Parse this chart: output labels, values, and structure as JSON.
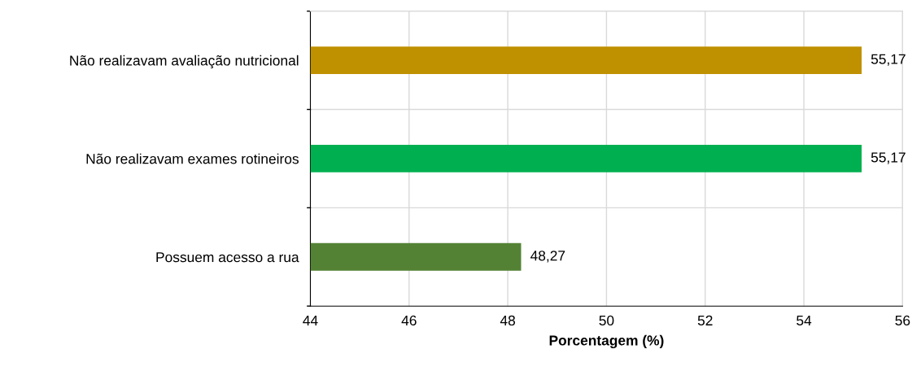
{
  "chart_data": {
    "type": "bar",
    "orientation": "horizontal",
    "xlabel": "Porcentagem (%)",
    "categories": [
      "Não realizavam avaliação nutricional",
      "Não realizavam exames rotineiros",
      "Possuem acesso a rua"
    ],
    "values": [
      55.17,
      55.17,
      48.27
    ],
    "colors": [
      "#bf9000",
      "#00b050",
      "#548235"
    ],
    "value_labels": [
      "55,17",
      "55,17",
      "48,27"
    ],
    "xlim": [
      44,
      56
    ],
    "xticks": [
      44,
      46,
      48,
      50,
      52,
      54,
      56
    ],
    "grid": true
  }
}
